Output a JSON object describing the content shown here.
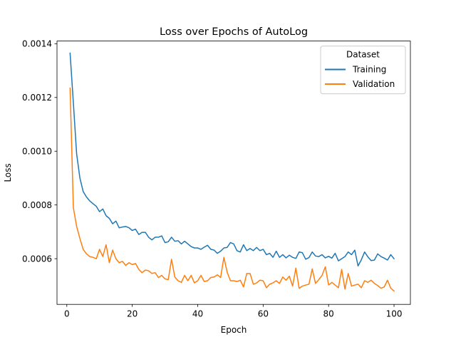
{
  "chart_data": {
    "type": "line",
    "title": "Loss over Epochs of AutoLog",
    "xlabel": "Epoch",
    "ylabel": "Loss",
    "xlim": [
      -3,
      105
    ],
    "ylim": [
      0.00043,
      0.00141
    ],
    "xticks": [
      0,
      20,
      40,
      60,
      80,
      100
    ],
    "yticks": [
      0.0006,
      0.0008,
      0.001,
      0.0012,
      0.0014
    ],
    "ytick_labels": [
      "0.0006",
      "0.0008",
      "0.0010",
      "0.0012",
      "0.0014"
    ],
    "grid": false,
    "legend": {
      "title": "Dataset",
      "placement": "top-right"
    },
    "x": [
      1,
      2,
      3,
      4,
      5,
      6,
      7,
      8,
      9,
      10,
      11,
      12,
      13,
      14,
      15,
      16,
      17,
      18,
      19,
      20,
      21,
      22,
      23,
      24,
      25,
      26,
      27,
      28,
      29,
      30,
      31,
      32,
      33,
      34,
      35,
      36,
      37,
      38,
      39,
      40,
      41,
      42,
      43,
      44,
      45,
      46,
      47,
      48,
      49,
      50,
      51,
      52,
      53,
      54,
      55,
      56,
      57,
      58,
      59,
      60,
      61,
      62,
      63,
      64,
      65,
      66,
      67,
      68,
      69,
      70,
      71,
      72,
      73,
      74,
      75,
      76,
      77,
      78,
      79,
      80,
      81,
      82,
      83,
      84,
      85,
      86,
      87,
      88,
      89,
      90,
      91,
      92,
      93,
      94,
      95,
      96,
      97,
      98,
      99,
      100
    ],
    "series": [
      {
        "name": "Training",
        "color": "#1f77b4",
        "values": [
          0.001365,
          0.00118,
          0.00099,
          0.0009,
          0.00085,
          0.00083,
          0.000815,
          0.000805,
          0.000795,
          0.000775,
          0.000785,
          0.00076,
          0.00075,
          0.00073,
          0.00074,
          0.000715,
          0.000718,
          0.00072,
          0.000715,
          0.000705,
          0.00071,
          0.00069,
          0.000698,
          0.000698,
          0.00068,
          0.00067,
          0.00068,
          0.00068,
          0.000685,
          0.00066,
          0.000663,
          0.00068,
          0.000665,
          0.000667,
          0.000655,
          0.000665,
          0.000655,
          0.000645,
          0.00064,
          0.00064,
          0.000635,
          0.000643,
          0.00065,
          0.000635,
          0.000632,
          0.00062,
          0.000628,
          0.00064,
          0.000642,
          0.00066,
          0.000655,
          0.00063,
          0.000625,
          0.000652,
          0.00063,
          0.000638,
          0.00063,
          0.000642,
          0.00063,
          0.000635,
          0.000615,
          0.00062,
          0.000605,
          0.000628,
          0.000605,
          0.000615,
          0.000603,
          0.000613,
          0.000605,
          0.000601,
          0.000625,
          0.000622,
          0.000598,
          0.000604,
          0.000625,
          0.00061,
          0.000608,
          0.000615,
          0.000603,
          0.000609,
          0.000602,
          0.00062,
          0.000592,
          0.0006,
          0.000608,
          0.000625,
          0.000615,
          0.000632,
          0.000573,
          0.000596,
          0.000625,
          0.000607,
          0.000593,
          0.000595,
          0.000618,
          0.000608,
          0.000602,
          0.000595,
          0.000615,
          0.0006
        ]
      },
      {
        "name": "Validation",
        "color": "#ff7f0e",
        "values": [
          0.001235,
          0.00079,
          0.00072,
          0.000675,
          0.000635,
          0.000618,
          0.000608,
          0.000605,
          0.0006,
          0.000635,
          0.000608,
          0.000652,
          0.000585,
          0.000632,
          0.0006,
          0.000585,
          0.00059,
          0.000575,
          0.000585,
          0.000578,
          0.000582,
          0.00056,
          0.000548,
          0.000558,
          0.000555,
          0.000545,
          0.000548,
          0.00053,
          0.000538,
          0.000525,
          0.000522,
          0.000598,
          0.000532,
          0.000518,
          0.000512,
          0.000538,
          0.000518,
          0.000538,
          0.00051,
          0.000518,
          0.000538,
          0.000515,
          0.000518,
          0.00053,
          0.000532,
          0.00054,
          0.00053,
          0.000605,
          0.00055,
          0.000518,
          0.000518,
          0.000515,
          0.00052,
          0.000495,
          0.000545,
          0.000545,
          0.000505,
          0.00051,
          0.00052,
          0.000518,
          0.000492,
          0.000505,
          0.00051,
          0.000518,
          0.000508,
          0.000532,
          0.00052,
          0.000535,
          0.000498,
          0.000565,
          0.00049,
          0.000498,
          0.000502,
          0.000505,
          0.000562,
          0.000508,
          0.000522,
          0.000538,
          0.00057,
          0.000502,
          0.000512,
          0.000502,
          0.000492,
          0.00056,
          0.000487,
          0.000545,
          0.000498,
          0.000502,
          0.000505,
          0.000492,
          0.000518,
          0.000512,
          0.00052,
          0.000508,
          0.0005,
          0.00049,
          0.000495,
          0.00052,
          0.00049,
          0.00048
        ]
      }
    ]
  }
}
